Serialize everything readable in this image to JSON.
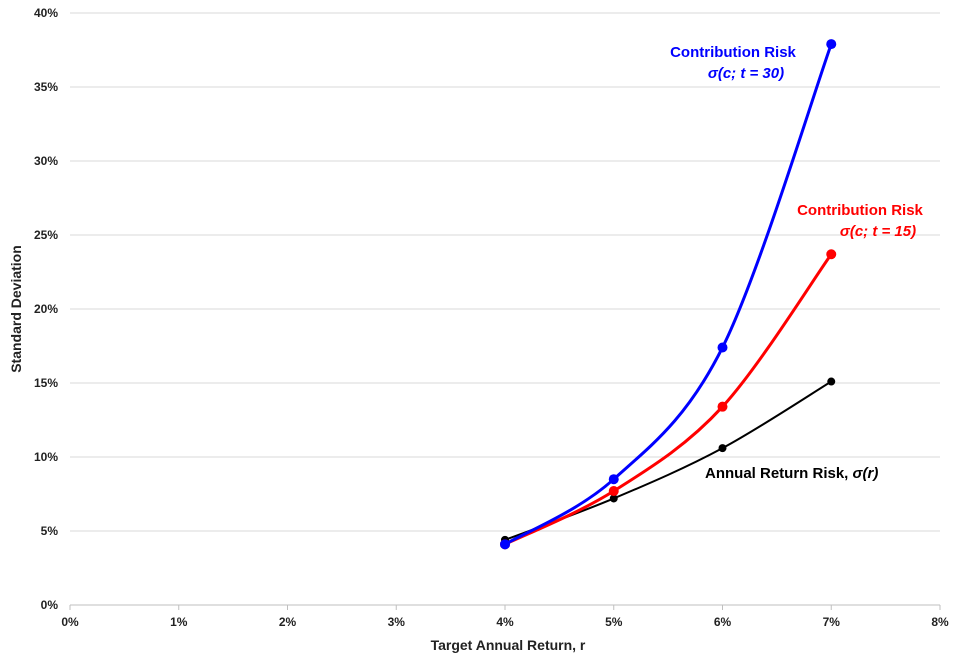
{
  "chart_data": {
    "type": "line",
    "xlabel": "Target Annual Return, r",
    "ylabel": "Standard Deviation",
    "xlim": [
      0,
      8
    ],
    "ylim": [
      0,
      40
    ],
    "x_ticks": [
      "0%",
      "1%",
      "2%",
      "3%",
      "4%",
      "5%",
      "6%",
      "7%",
      "8%"
    ],
    "y_ticks": [
      "0%",
      "5%",
      "10%",
      "15%",
      "20%",
      "25%",
      "30%",
      "35%",
      "40%"
    ],
    "grid": "horizontal",
    "series": [
      {
        "color": "#0000ff",
        "x": [
          4,
          5,
          6,
          7
        ],
        "y": [
          4.1,
          8.5,
          17.4,
          37.9
        ]
      },
      {
        "color": "#ff0000",
        "x": [
          4,
          5,
          6,
          7
        ],
        "y": [
          4.1,
          7.7,
          13.4,
          23.7
        ]
      },
      {
        "color": "#000000",
        "x": [
          4,
          5,
          6,
          7
        ],
        "y": [
          4.4,
          7.2,
          10.6,
          15.1
        ]
      }
    ],
    "annotations": [
      {
        "line1": "Contribution Risk",
        "line2": "σ(c; t = 30)",
        "color": "#0000ff"
      },
      {
        "line1": "Contribution Risk",
        "line2": "σ(c; t = 15)",
        "color": "#ff0000"
      },
      {
        "line1": "Annual Return Risk, ",
        "line2": "σ(r)",
        "color": "#000000"
      }
    ]
  }
}
